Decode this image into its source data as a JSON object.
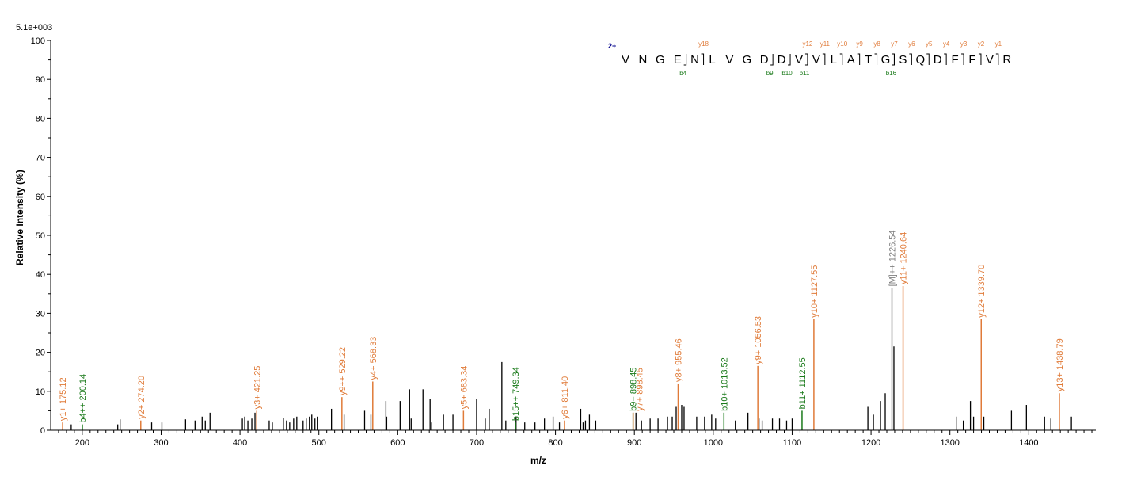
{
  "chart_data": {
    "type": "bar",
    "scale_label": "5.1e+003",
    "xlabel": "m/z",
    "ylabel": "Relative   Intensity (%)",
    "xlim": [
      160,
      1485
    ],
    "ylim": [
      0,
      100
    ],
    "x_ticks": [
      200,
      300,
      400,
      500,
      600,
      700,
      800,
      900,
      1000,
      1100,
      1200,
      1300,
      1400
    ],
    "y_ticks": [
      0,
      10,
      20,
      30,
      40,
      50,
      60,
      70,
      80,
      90,
      100
    ],
    "colors": {
      "y_ion": "#e07b39",
      "b_ion": "#1a7a1a",
      "precursor": "#808080",
      "unassigned": "#000000",
      "charge": "#00008b"
    },
    "annotated_peaks": [
      {
        "mz": 175.12,
        "intensity": 2,
        "label": "y1+ 175.12",
        "ion": "y"
      },
      {
        "mz": 200.14,
        "intensity": 1.5,
        "label": "b4++ 200.14",
        "ion": "b"
      },
      {
        "mz": 274.2,
        "intensity": 2.5,
        "label": "y2+ 274.20",
        "ion": "y"
      },
      {
        "mz": 421.25,
        "intensity": 5,
        "label": "y3+ 421.25",
        "ion": "y"
      },
      {
        "mz": 529.22,
        "intensity": 8.5,
        "label": "y9++ 529.22",
        "ion": "y"
      },
      {
        "mz": 568.33,
        "intensity": 12.5,
        "label": "y4+ 568.33",
        "ion": "y"
      },
      {
        "mz": 683.34,
        "intensity": 5,
        "label": "y5+ 683.34",
        "ion": "y"
      },
      {
        "mz": 749.34,
        "intensity": 2,
        "label": "b15++ 749.34",
        "ion": "b"
      },
      {
        "mz": 811.4,
        "intensity": 2.5,
        "label": "y6+ 811.40",
        "ion": "y"
      },
      {
        "mz": 898.45,
        "intensity": 4.5,
        "label": "b9+ 898.45",
        "ion": "b"
      },
      {
        "mz": 898.45,
        "intensity": 4.5,
        "label": "y7+ 898.45",
        "ion": "y"
      },
      {
        "mz": 955.46,
        "intensity": 12,
        "label": "y8+ 955.46",
        "ion": "y"
      },
      {
        "mz": 1013.52,
        "intensity": 4.5,
        "label": "b10+ 1013.52",
        "ion": "b"
      },
      {
        "mz": 1056.53,
        "intensity": 16.5,
        "label": "y9+ 1056.53",
        "ion": "y"
      },
      {
        "mz": 1112.55,
        "intensity": 5,
        "label": "b11+ 1112.55",
        "ion": "b"
      },
      {
        "mz": 1127.55,
        "intensity": 28.5,
        "label": "y10+ 1127.55",
        "ion": "y"
      },
      {
        "mz": 1226.54,
        "intensity": 36.5,
        "label": "[M]++ 1226.54",
        "ion": "precursor"
      },
      {
        "mz": 1240.64,
        "intensity": 37,
        "label": "y11+ 1240.64",
        "ion": "y"
      },
      {
        "mz": 1339.7,
        "intensity": 28.5,
        "label": "y12+ 1339.70",
        "ion": "y"
      },
      {
        "mz": 1438.79,
        "intensity": 9.5,
        "label": "y13+ 1438.79",
        "ion": "y"
      }
    ],
    "unassigned_peaks": [
      [
        186,
        1.5
      ],
      [
        245,
        1.5
      ],
      [
        248,
        2.8
      ],
      [
        288,
        2
      ],
      [
        301,
        2
      ],
      [
        331,
        2.8
      ],
      [
        343,
        2.5
      ],
      [
        352,
        3.5
      ],
      [
        356,
        2.5
      ],
      [
        362,
        4.5
      ],
      [
        403,
        3
      ],
      [
        406,
        3.5
      ],
      [
        410,
        2.5
      ],
      [
        415,
        3
      ],
      [
        419,
        4.5
      ],
      [
        437,
        2.5
      ],
      [
        441,
        2
      ],
      [
        455,
        3.2
      ],
      [
        459,
        2.5
      ],
      [
        463,
        2
      ],
      [
        468,
        3
      ],
      [
        472,
        3.5
      ],
      [
        480,
        2.5
      ],
      [
        484,
        3
      ],
      [
        488,
        3.5
      ],
      [
        491,
        4
      ],
      [
        495,
        3
      ],
      [
        498,
        3.5
      ],
      [
        516,
        5.5
      ],
      [
        532,
        4
      ],
      [
        558,
        5
      ],
      [
        566,
        4
      ],
      [
        585,
        7.5
      ],
      [
        586,
        3.5
      ],
      [
        603,
        7.5
      ],
      [
        615,
        10.5
      ],
      [
        617,
        3
      ],
      [
        632,
        10.5
      ],
      [
        641,
        8
      ],
      [
        643,
        2
      ],
      [
        658,
        4
      ],
      [
        670,
        4
      ],
      [
        700,
        8
      ],
      [
        711,
        3
      ],
      [
        716,
        5.5
      ],
      [
        732,
        17.5
      ],
      [
        737,
        2.5
      ],
      [
        750,
        3.5
      ],
      [
        761,
        2
      ],
      [
        774,
        2
      ],
      [
        786,
        3
      ],
      [
        797,
        3.5
      ],
      [
        805,
        2
      ],
      [
        832,
        5.5
      ],
      [
        835,
        2
      ],
      [
        838,
        2.5
      ],
      [
        843,
        4
      ],
      [
        851,
        2.5
      ],
      [
        902,
        4.5
      ],
      [
        909,
        2.5
      ],
      [
        920,
        3
      ],
      [
        930,
        3
      ],
      [
        942,
        3.5
      ],
      [
        948,
        3.5
      ],
      [
        953,
        6
      ],
      [
        960,
        6.5
      ],
      [
        963,
        6
      ],
      [
        979,
        3.5
      ],
      [
        989,
        3.5
      ],
      [
        998,
        4
      ],
      [
        1003,
        3
      ],
      [
        1028,
        2.5
      ],
      [
        1044,
        4.5
      ],
      [
        1058,
        3
      ],
      [
        1062,
        2.5
      ],
      [
        1075,
        3
      ],
      [
        1084,
        3
      ],
      [
        1093,
        2.5
      ],
      [
        1100,
        3
      ],
      [
        1196,
        6
      ],
      [
        1203,
        4
      ],
      [
        1212,
        7.5
      ],
      [
        1218,
        9.5
      ],
      [
        1229,
        21.5
      ],
      [
        1308,
        3.5
      ],
      [
        1317,
        2.5
      ],
      [
        1326,
        7.5
      ],
      [
        1330,
        3.5
      ],
      [
        1343,
        3.5
      ],
      [
        1378,
        5
      ],
      [
        1397,
        6.5
      ],
      [
        1420,
        3.5
      ],
      [
        1428,
        3
      ],
      [
        1454,
        3.5
      ]
    ],
    "sequence": {
      "charge": "2+",
      "residues": [
        "V",
        "N",
        "G",
        "E",
        "N",
        "L",
        "V",
        "G",
        "D",
        "D",
        "V",
        "V",
        "L",
        "A",
        "T",
        "G",
        "S",
        "Q",
        "D",
        "F",
        "F",
        "V",
        "R"
      ],
      "y_ions": [
        {
          "label": "y18",
          "after": 5
        },
        {
          "label": "y12",
          "after": 11
        },
        {
          "label": "y11",
          "after": 12
        },
        {
          "label": "y10",
          "after": 13
        },
        {
          "label": "y9",
          "after": 14
        },
        {
          "label": "y8",
          "after": 15
        },
        {
          "label": "y7",
          "after": 16
        },
        {
          "label": "y6",
          "after": 17
        },
        {
          "label": "y5",
          "after": 18
        },
        {
          "label": "y4",
          "after": 19
        },
        {
          "label": "y3",
          "after": 20
        },
        {
          "label": "y2",
          "after": 21
        },
        {
          "label": "y1",
          "after": 22
        }
      ],
      "b_ions": [
        {
          "label": "b4",
          "after": 4
        },
        {
          "label": "b9",
          "after": 9
        },
        {
          "label": "b10",
          "after": 10
        },
        {
          "label": "b11",
          "after": 11
        },
        {
          "label": "b16",
          "after": 16
        }
      ]
    }
  }
}
